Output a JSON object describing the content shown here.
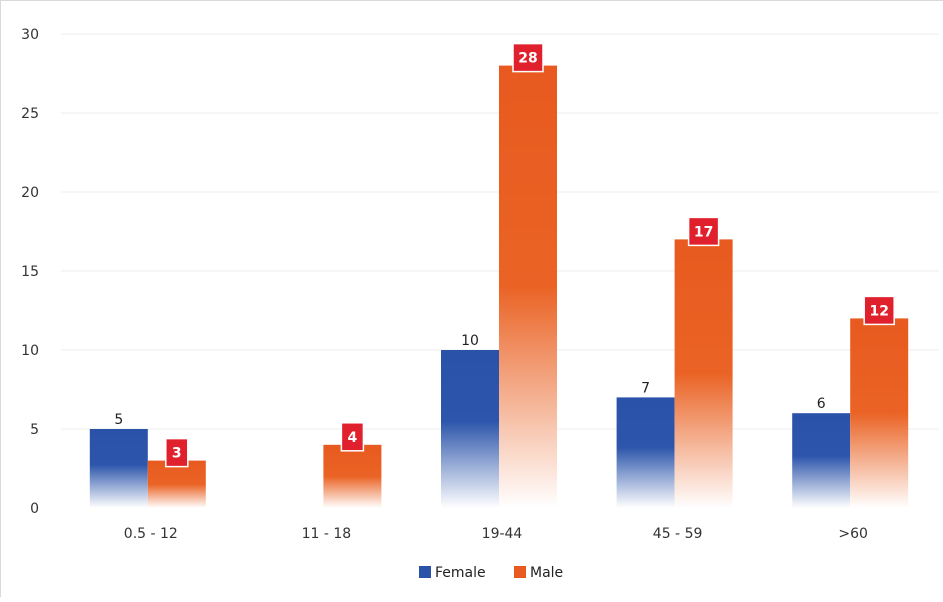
{
  "chart_data": {
    "type": "bar",
    "categories": [
      "0.5 - 12",
      "11 - 18",
      "19-44",
      "45 - 59",
      ">60"
    ],
    "series": [
      {
        "name": "Female",
        "values": [
          5,
          null,
          10,
          7,
          6
        ],
        "color": "#2a52a8"
      },
      {
        "name": "Male",
        "values": [
          3,
          4,
          28,
          17,
          12
        ],
        "color": "#e85a1f"
      }
    ],
    "ylim": [
      0,
      30
    ],
    "yticks": [
      0,
      5,
      10,
      15,
      20,
      25,
      30
    ],
    "grid": true,
    "legend_position": "bottom",
    "male_label_color": "#e0202c"
  }
}
